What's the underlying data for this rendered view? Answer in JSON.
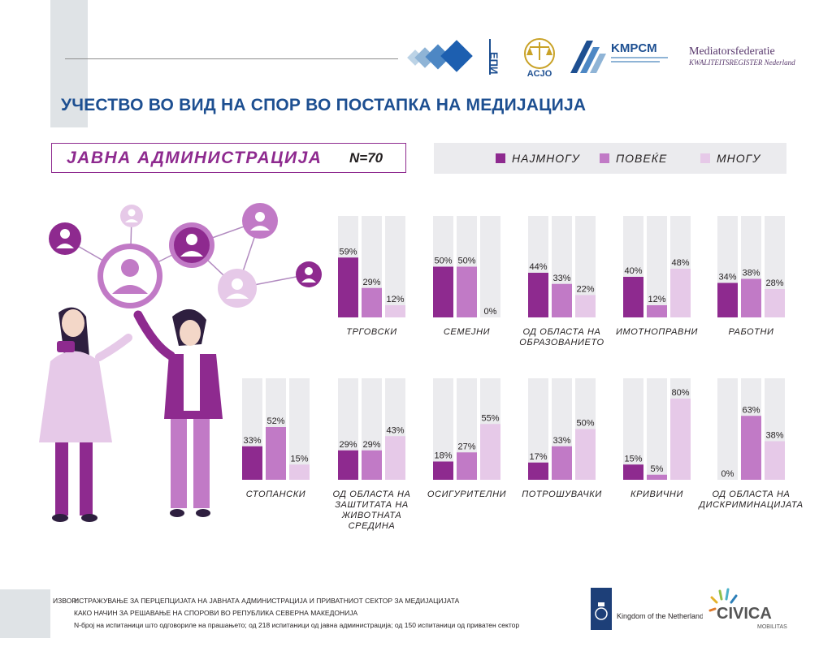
{
  "header": {
    "title": "УЧЕСТВО ВО ВИД НА СПОР ВО ПОСТАПКА НА МЕДИЈАЦИЈА",
    "logos": {
      "epi": "ЕПИ",
      "acjo": "ACJO",
      "kmpcm": "KMPCM",
      "mfn_line1": "Mediatorsfederatie",
      "mfn_line2": "KWALITEITSREGISTER Nederland"
    }
  },
  "panel": {
    "label": "ЈАВНА АДМИНИСТРАЦИЈА",
    "n": "N=70"
  },
  "legend": [
    {
      "label": "НАЈМНОГУ",
      "color": "#8e2a8f"
    },
    {
      "label": "ПОВЕЌЕ",
      "color": "#c17ac6"
    },
    {
      "label": "МНОГУ",
      "color": "#e6c9e8"
    }
  ],
  "colors": {
    "background_bar": "#ebebee",
    "title": "#1d4f91",
    "accent": "#8e2a8f"
  },
  "chart_data": {
    "type": "bar",
    "series": [
      {
        "name": "НАЈМНОГУ",
        "color": "#8e2a8f"
      },
      {
        "name": "ПОВЕЌЕ",
        "color": "#c17ac6"
      },
      {
        "name": "МНОГУ",
        "color": "#e6c9e8"
      }
    ],
    "ylim": [
      0,
      100
    ],
    "groups": [
      {
        "category": "ТРГОВСКИ",
        "values": [
          59,
          29,
          12
        ],
        "labels": [
          "59%",
          "29%",
          "12%"
        ]
      },
      {
        "category": "СЕМЕЈНИ",
        "values": [
          50,
          50,
          0
        ],
        "labels": [
          "50%",
          "50%",
          "0%"
        ]
      },
      {
        "category": "ОД ОБЛАСТА НА ОБРАЗОВАНИЕТО",
        "values": [
          44,
          33,
          22
        ],
        "labels": [
          "44%",
          "33%",
          "22%"
        ]
      },
      {
        "category": "ИМОТНОПРАВНИ",
        "values": [
          40,
          12,
          48
        ],
        "labels": [
          "40%",
          "12%",
          "48%"
        ]
      },
      {
        "category": "РАБОТНИ",
        "values": [
          34,
          38,
          28
        ],
        "labels": [
          "34%",
          "38%",
          "28%"
        ]
      },
      {
        "category": "СТОПАНСКИ",
        "values": [
          33,
          52,
          15
        ],
        "labels": [
          "33%",
          "52%",
          "15%"
        ]
      },
      {
        "category": "ОД ОБЛАСТА НА ЗАШТИТАТА НА ЖИВОТНАТА СРЕДИНА",
        "values": [
          29,
          29,
          43
        ],
        "labels": [
          "29%",
          "29%",
          "43%"
        ]
      },
      {
        "category": "ОСИГУРИТЕЛНИ",
        "values": [
          18,
          27,
          55
        ],
        "labels": [
          "18%",
          "27%",
          "55%"
        ]
      },
      {
        "category": "ПОТРОШУВАЧКИ",
        "values": [
          17,
          33,
          50
        ],
        "labels": [
          "17%",
          "33%",
          "50%"
        ]
      },
      {
        "category": "КРИВИЧНИ",
        "values": [
          15,
          5,
          80
        ],
        "labels": [
          "15%",
          "5%",
          "80%"
        ]
      },
      {
        "category": "ОД ОБЛАСТА НА ДИСКРИМИНАЦИЈАТА",
        "values": [
          0,
          63,
          38
        ],
        "labels": [
          "0%",
          "63%",
          "38%"
        ]
      }
    ]
  },
  "footer": {
    "source_label": "ИЗВОР:",
    "line1": "ИСТРАЖУВАЊЕ ЗА ПЕРЦЕПЦИЈАТА НА ЈАВНАТА АДМИНИСТРАЦИЈА И ПРИВАТНИОТ СЕКТОР ЗА МЕДИЈАЦИЈАТА",
    "line2": "КАКО НАЧИН ЗА РЕШАВАЊЕ НА СПОРОВИ ВО РЕПУБЛИКА СЕВЕРНА МАКЕДОНИЈА",
    "line3": "N-број на испитаници што одговориле на прашањето; од 218 испитаници од јавна администрација; од 150 испитаници од приватен сектор",
    "kingdom": "Kingdom of the Netherlands",
    "civica": "CIVICA",
    "civica_sub": "MOBILITAS"
  }
}
